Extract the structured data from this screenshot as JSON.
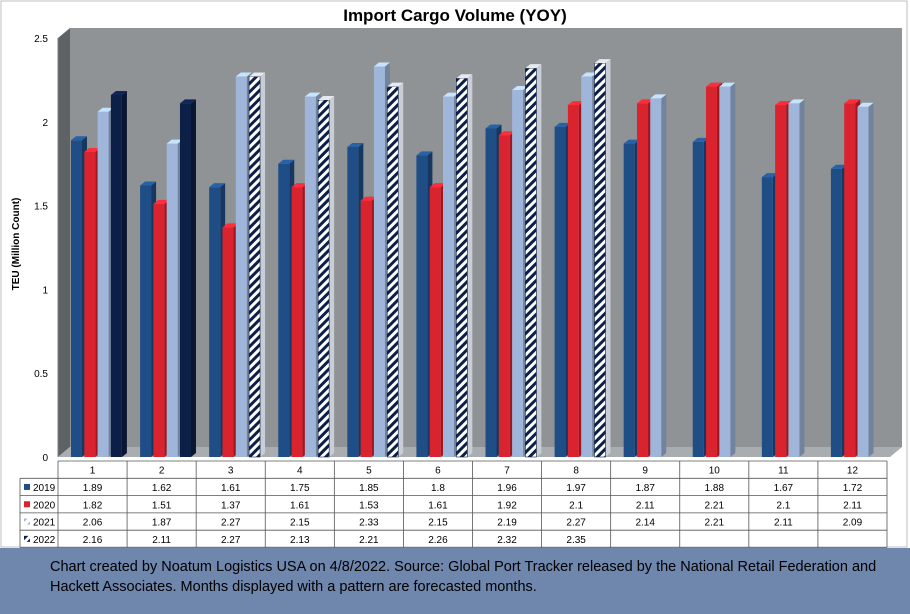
{
  "chart_data": {
    "type": "bar",
    "title": "Import Cargo Volume (YOY)",
    "ylabel": "TEU (Million Count)",
    "xlabel": "",
    "ylim": [
      0,
      2.5
    ],
    "yticks": [
      "0",
      "0.5",
      "1",
      "1.5",
      "2",
      "2.5"
    ],
    "ytick_values": [
      0,
      0.5,
      1,
      1.5,
      2,
      2.5
    ],
    "categories": [
      "1",
      "2",
      "3",
      "4",
      "5",
      "6",
      "7",
      "8",
      "9",
      "10",
      "11",
      "12"
    ],
    "series": [
      {
        "name": "2019",
        "color": "#1f4e86",
        "pattern": false,
        "values": [
          1.89,
          1.62,
          1.61,
          1.75,
          1.85,
          1.8,
          1.96,
          1.97,
          1.87,
          1.88,
          1.67,
          1.72
        ]
      },
      {
        "name": "2020",
        "color": "#d9232e",
        "pattern": false,
        "values": [
          1.82,
          1.51,
          1.37,
          1.61,
          1.53,
          1.61,
          1.92,
          2.1,
          2.11,
          2.21,
          2.1,
          2.11
        ]
      },
      {
        "name": "2021",
        "color": "#9fb6da",
        "pattern": false,
        "values": [
          2.06,
          1.87,
          2.27,
          2.15,
          2.33,
          2.15,
          2.19,
          2.27,
          2.14,
          2.21,
          2.11,
          2.09
        ]
      },
      {
        "name": "2022",
        "color": "#0c1f46",
        "values": [
          2.16,
          2.11,
          2.27,
          2.13,
          2.21,
          2.26,
          2.32,
          2.35,
          null,
          null,
          null,
          null
        ],
        "forecast_from_index": 2
      }
    ],
    "table_labels": [
      [
        "1.89",
        "1.62",
        "1.61",
        "1.75",
        "1.85",
        "1.8",
        "1.96",
        "1.97",
        "1.87",
        "1.88",
        "1.67",
        "1.72"
      ],
      [
        "1.82",
        "1.51",
        "1.37",
        "1.61",
        "1.53",
        "1.61",
        "1.92",
        "2.1",
        "2.11",
        "2.21",
        "2.1",
        "2.11"
      ],
      [
        "2.06",
        "1.87",
        "2.27",
        "2.15",
        "2.33",
        "2.15",
        "2.19",
        "2.27",
        "2.14",
        "2.21",
        "2.11",
        "2.09"
      ],
      [
        "2.16",
        "2.11",
        "2.27",
        "2.13",
        "2.21",
        "2.26",
        "2.32",
        "2.35",
        "",
        "",
        "",
        ""
      ]
    ],
    "grid": false,
    "legend": "data-table"
  },
  "colors": {
    "plot_background": "#8f9395",
    "left_wall": "#5e6264",
    "floor": "#a9adaf",
    "caption_background": "#6f86ad"
  },
  "caption": "Chart created by Noatum Logistics USA on 4/8/2022. Source: Global Port Tracker released by the National Retail Federation and Hackett Associates. Months displayed with a pattern are forecasted months."
}
